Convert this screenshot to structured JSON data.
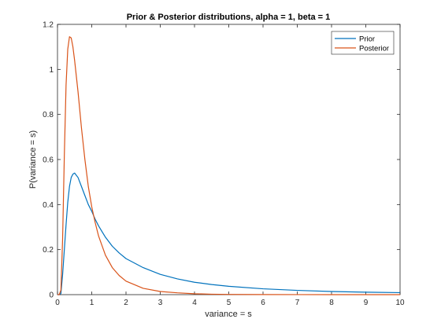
{
  "chart_data": {
    "type": "line",
    "title": "Prior & Posterior distributions, alpha = 1, beta = 1",
    "xlabel": "variance = s",
    "ylabel": "P(variance = s)",
    "xlim": [
      0,
      10
    ],
    "ylim": [
      0,
      1.2
    ],
    "xticks": [
      "0",
      "1",
      "2",
      "3",
      "4",
      "5",
      "6",
      "7",
      "8",
      "9",
      "10"
    ],
    "yticks": [
      "0",
      "0.2",
      "0.4",
      "0.6",
      "0.8",
      "1",
      "1.2"
    ],
    "grid": false,
    "legend_position": "top-right",
    "x": [
      0.05,
      0.1,
      0.15,
      0.2,
      0.25,
      0.3,
      0.35,
      0.4,
      0.45,
      0.5,
      0.6,
      0.7,
      0.8,
      0.9,
      1.0,
      1.1,
      1.2,
      1.4,
      1.6,
      1.8,
      2.0,
      2.5,
      3.0,
      3.5,
      4.0,
      4.5,
      5.0,
      6.0,
      7.0,
      8.0,
      9.0,
      10.0
    ],
    "series": [
      {
        "name": "Prior",
        "color": "#0072BD",
        "values": [
          0.0,
          0.005,
          0.09,
          0.2,
          0.31,
          0.41,
          0.48,
          0.52,
          0.535,
          0.54,
          0.52,
          0.48,
          0.44,
          0.4,
          0.37,
          0.335,
          0.305,
          0.255,
          0.215,
          0.185,
          0.16,
          0.12,
          0.09,
          0.07,
          0.055,
          0.045,
          0.037,
          0.026,
          0.019,
          0.014,
          0.011,
          0.009
        ]
      },
      {
        "name": "Posterior",
        "color": "#D95319",
        "values": [
          0.0,
          0.02,
          0.25,
          0.62,
          0.93,
          1.09,
          1.145,
          1.14,
          1.1,
          1.04,
          0.9,
          0.74,
          0.6,
          0.48,
          0.39,
          0.32,
          0.26,
          0.175,
          0.12,
          0.085,
          0.06,
          0.028,
          0.014,
          0.008,
          0.004,
          0.002,
          0.001,
          0.0005,
          0.0002,
          0.0001,
          0.0,
          0.0
        ]
      }
    ]
  }
}
